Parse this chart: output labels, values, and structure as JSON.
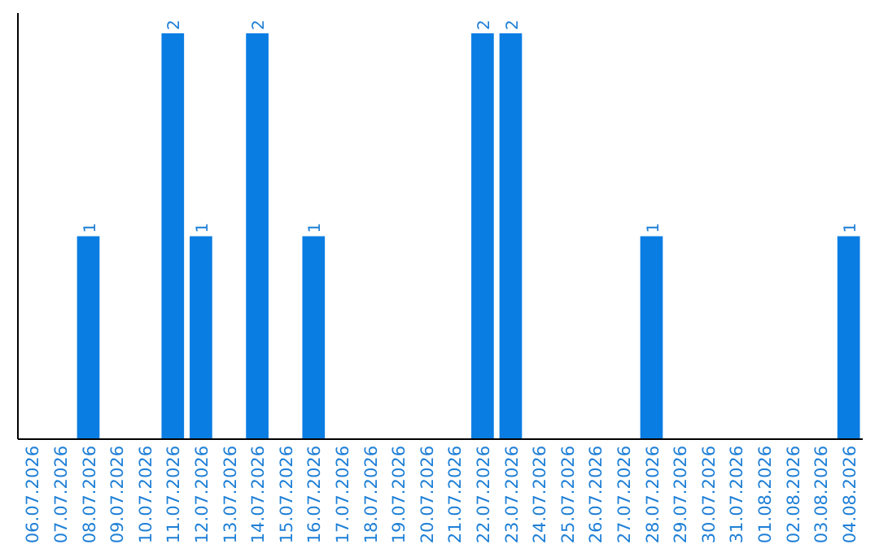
{
  "chart_data": {
    "type": "bar",
    "categories": [
      "06.07.2026",
      "07.07.2026",
      "08.07.2026",
      "09.07.2026",
      "10.07.2026",
      "11.07.2026",
      "12.07.2026",
      "13.07.2026",
      "14.07.2026",
      "15.07.2026",
      "16.07.2026",
      "17.07.2026",
      "18.07.2026",
      "19.07.2026",
      "20.07.2026",
      "21.07.2026",
      "22.07.2026",
      "23.07.2026",
      "24.07.2026",
      "25.07.2026",
      "26.07.2026",
      "27.07.2026",
      "28.07.2026",
      "29.07.2026",
      "30.07.2026",
      "31.07.2026",
      "01.08.2026",
      "02.08.2026",
      "03.08.2026",
      "04.08.2026"
    ],
    "values": [
      0,
      0,
      1,
      0,
      0,
      2,
      1,
      0,
      2,
      0,
      1,
      0,
      0,
      0,
      0,
      0,
      2,
      2,
      0,
      0,
      0,
      0,
      1,
      0,
      0,
      0,
      0,
      0,
      0,
      1
    ],
    "value_labels": [
      null,
      null,
      "1",
      null,
      null,
      "2",
      "1",
      null,
      "2",
      null,
      "1",
      null,
      null,
      null,
      null,
      null,
      "2",
      "2",
      null,
      null,
      null,
      null,
      "1",
      null,
      null,
      null,
      null,
      null,
      null,
      "1"
    ],
    "color": "#0a7de3",
    "ylim": [
      0,
      2.1
    ],
    "tick_labels": "x"
  }
}
